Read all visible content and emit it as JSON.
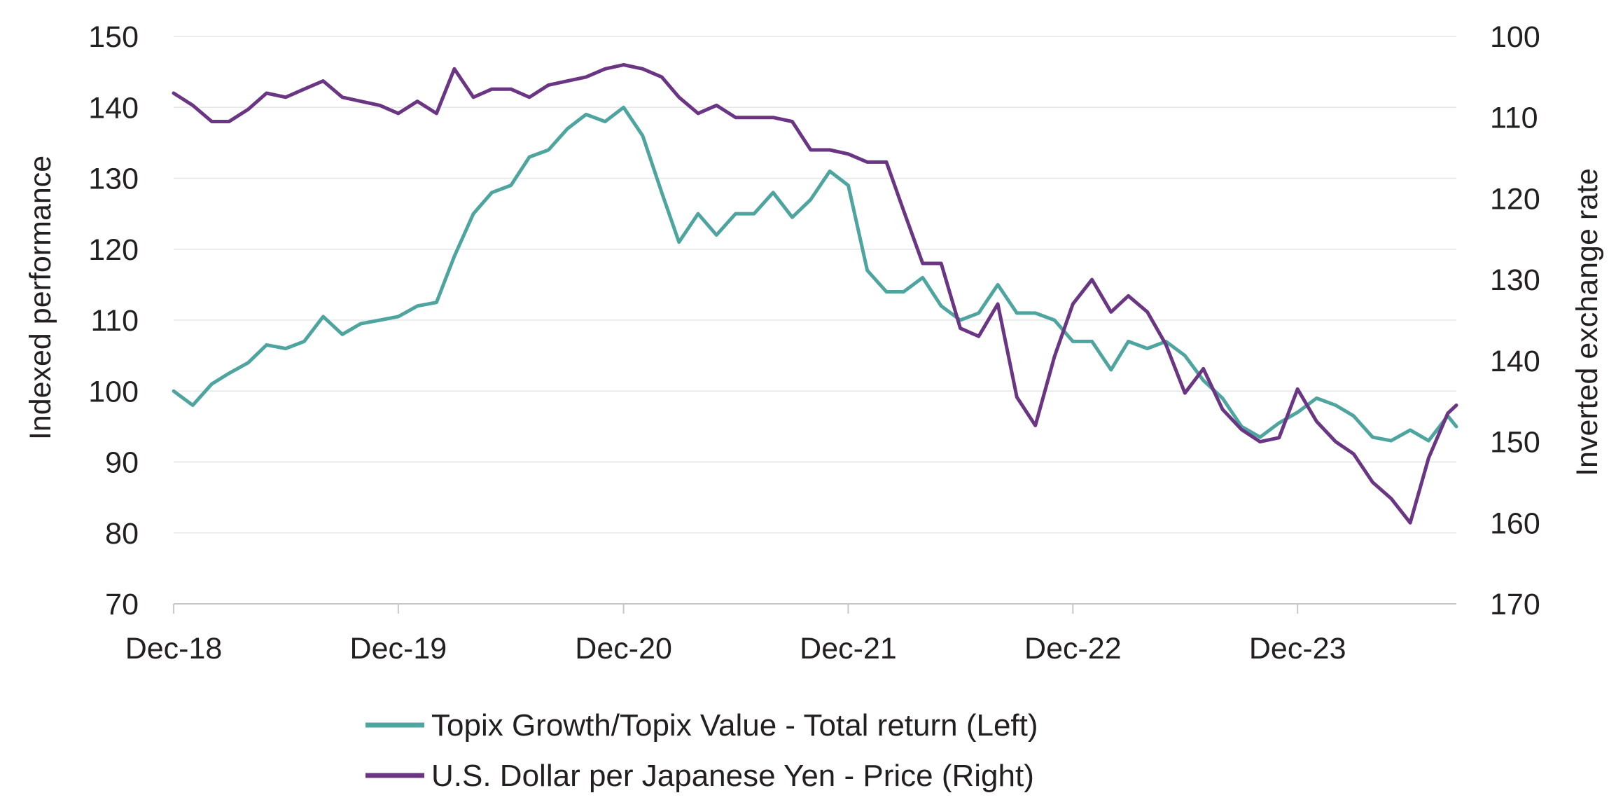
{
  "chart_data": {
    "type": "line",
    "title": "",
    "xlabel": "",
    "ylabel": "Indexed performance",
    "y2label": "Inverted exchange rate",
    "ylim": [
      70,
      150
    ],
    "y2lim": [
      100,
      170
    ],
    "y2_inverted": true,
    "xlim": [
      "2018-12-01",
      "2024-08-15"
    ],
    "grid": "horizontal",
    "legend_position": "bottom",
    "yticks": [
      "70",
      "80",
      "90",
      "100",
      "110",
      "120",
      "130",
      "140",
      "150"
    ],
    "y2ticks": [
      "100",
      "110",
      "120",
      "130",
      "140",
      "150",
      "160",
      "170"
    ],
    "xticks": [
      {
        "date": "2018-12-01",
        "label": "Dec-18"
      },
      {
        "date": "2019-12-01",
        "label": "Dec-19"
      },
      {
        "date": "2020-12-01",
        "label": "Dec-20"
      },
      {
        "date": "2021-12-01",
        "label": "Dec-21"
      },
      {
        "date": "2022-12-01",
        "label": "Dec-22"
      },
      {
        "date": "2023-12-01",
        "label": "Dec-23"
      }
    ],
    "series": [
      {
        "name": "Topix Growth/Topix Value - Total return (Left)",
        "axis": "left",
        "color": "#4ea5a0",
        "points": [
          [
            "2018-12-01",
            100
          ],
          [
            "2019-01-01",
            98
          ],
          [
            "2019-02-01",
            101
          ],
          [
            "2019-03-01",
            102.5
          ],
          [
            "2019-04-01",
            104
          ],
          [
            "2019-05-01",
            106.5
          ],
          [
            "2019-06-01",
            106
          ],
          [
            "2019-07-01",
            107
          ],
          [
            "2019-08-01",
            110.5
          ],
          [
            "2019-09-01",
            108
          ],
          [
            "2019-10-01",
            109.5
          ],
          [
            "2019-11-01",
            110
          ],
          [
            "2019-12-01",
            110.5
          ],
          [
            "2020-01-01",
            112
          ],
          [
            "2020-02-01",
            112.5
          ],
          [
            "2020-03-01",
            119
          ],
          [
            "2020-04-01",
            125
          ],
          [
            "2020-05-01",
            128
          ],
          [
            "2020-06-01",
            129
          ],
          [
            "2020-07-01",
            133
          ],
          [
            "2020-08-01",
            134
          ],
          [
            "2020-09-01",
            137
          ],
          [
            "2020-10-01",
            139
          ],
          [
            "2020-11-01",
            138
          ],
          [
            "2020-12-01",
            140
          ],
          [
            "2021-01-01",
            136
          ],
          [
            "2021-02-01",
            128
          ],
          [
            "2021-03-01",
            121
          ],
          [
            "2021-04-01",
            125
          ],
          [
            "2021-05-01",
            122
          ],
          [
            "2021-06-01",
            125
          ],
          [
            "2021-07-01",
            125
          ],
          [
            "2021-08-01",
            128
          ],
          [
            "2021-09-01",
            124.5
          ],
          [
            "2021-10-01",
            127
          ],
          [
            "2021-11-01",
            131
          ],
          [
            "2021-12-01",
            129
          ],
          [
            "2022-01-01",
            117
          ],
          [
            "2022-02-01",
            114
          ],
          [
            "2022-03-01",
            114
          ],
          [
            "2022-04-01",
            116
          ],
          [
            "2022-05-01",
            112
          ],
          [
            "2022-06-01",
            110
          ],
          [
            "2022-07-01",
            111
          ],
          [
            "2022-08-01",
            115
          ],
          [
            "2022-09-01",
            111
          ],
          [
            "2022-10-01",
            111
          ],
          [
            "2022-11-01",
            110
          ],
          [
            "2022-12-01",
            107
          ],
          [
            "2023-01-01",
            107
          ],
          [
            "2023-02-01",
            103
          ],
          [
            "2023-03-01",
            107
          ],
          [
            "2023-04-01",
            106
          ],
          [
            "2023-05-01",
            107
          ],
          [
            "2023-06-01",
            105
          ],
          [
            "2023-07-01",
            101.5
          ],
          [
            "2023-08-01",
            99
          ],
          [
            "2023-09-01",
            95
          ],
          [
            "2023-10-01",
            93.5
          ],
          [
            "2023-11-01",
            95.5
          ],
          [
            "2023-12-01",
            97
          ],
          [
            "2024-01-01",
            99
          ],
          [
            "2024-02-01",
            98
          ],
          [
            "2024-03-01",
            96.5
          ],
          [
            "2024-04-01",
            93.5
          ],
          [
            "2024-05-01",
            93
          ],
          [
            "2024-06-01",
            94.5
          ],
          [
            "2024-07-01",
            93
          ],
          [
            "2024-08-01",
            96.5
          ],
          [
            "2024-08-15",
            95
          ]
        ]
      },
      {
        "name": "U.S. Dollar per Japanese Yen - Price (Right)",
        "axis": "right",
        "color": "#6a3582",
        "points": [
          [
            "2018-12-01",
            107
          ],
          [
            "2019-01-01",
            108.5
          ],
          [
            "2019-02-01",
            110.5
          ],
          [
            "2019-03-01",
            110.5
          ],
          [
            "2019-04-01",
            109
          ],
          [
            "2019-05-01",
            107
          ],
          [
            "2019-06-01",
            107.5
          ],
          [
            "2019-07-01",
            106.5
          ],
          [
            "2019-08-01",
            105.5
          ],
          [
            "2019-09-01",
            107.5
          ],
          [
            "2019-10-01",
            108
          ],
          [
            "2019-11-01",
            108.5
          ],
          [
            "2019-12-01",
            109.5
          ],
          [
            "2020-01-01",
            108
          ],
          [
            "2020-02-01",
            109.5
          ],
          [
            "2020-03-01",
            104
          ],
          [
            "2020-04-01",
            107.5
          ],
          [
            "2020-05-01",
            106.5
          ],
          [
            "2020-06-01",
            106.5
          ],
          [
            "2020-07-01",
            107.5
          ],
          [
            "2020-08-01",
            106
          ],
          [
            "2020-09-01",
            105.5
          ],
          [
            "2020-10-01",
            105
          ],
          [
            "2020-11-01",
            104
          ],
          [
            "2020-12-01",
            103.5
          ],
          [
            "2021-01-01",
            104
          ],
          [
            "2021-02-01",
            105
          ],
          [
            "2021-03-01",
            107.5
          ],
          [
            "2021-04-01",
            109.5
          ],
          [
            "2021-05-01",
            108.5
          ],
          [
            "2021-06-01",
            110
          ],
          [
            "2021-07-01",
            110
          ],
          [
            "2021-08-01",
            110
          ],
          [
            "2021-09-01",
            110.5
          ],
          [
            "2021-10-01",
            114
          ],
          [
            "2021-11-01",
            114
          ],
          [
            "2021-12-01",
            114.5
          ],
          [
            "2022-01-01",
            115.5
          ],
          [
            "2022-02-01",
            115.5
          ],
          [
            "2022-03-01",
            121.5
          ],
          [
            "2022-04-01",
            128
          ],
          [
            "2022-05-01",
            128
          ],
          [
            "2022-06-01",
            136
          ],
          [
            "2022-07-01",
            137
          ],
          [
            "2022-08-01",
            133
          ],
          [
            "2022-09-01",
            144.5
          ],
          [
            "2022-10-01",
            148
          ],
          [
            "2022-11-01",
            139.5
          ],
          [
            "2022-12-01",
            133
          ],
          [
            "2023-01-01",
            130
          ],
          [
            "2023-02-01",
            134
          ],
          [
            "2023-03-01",
            132
          ],
          [
            "2023-04-01",
            134
          ],
          [
            "2023-05-01",
            138
          ],
          [
            "2023-06-01",
            144
          ],
          [
            "2023-07-01",
            141
          ],
          [
            "2023-08-01",
            146
          ],
          [
            "2023-09-01",
            148.5
          ],
          [
            "2023-10-01",
            150
          ],
          [
            "2023-11-01",
            149.5
          ],
          [
            "2023-12-01",
            143.5
          ],
          [
            "2024-01-01",
            147.5
          ],
          [
            "2024-02-01",
            150
          ],
          [
            "2024-03-01",
            151.5
          ],
          [
            "2024-04-01",
            155
          ],
          [
            "2024-05-01",
            157
          ],
          [
            "2024-06-01",
            160
          ],
          [
            "2024-07-01",
            152
          ],
          [
            "2024-08-01",
            146.5
          ],
          [
            "2024-08-15",
            145.5
          ]
        ]
      }
    ]
  }
}
